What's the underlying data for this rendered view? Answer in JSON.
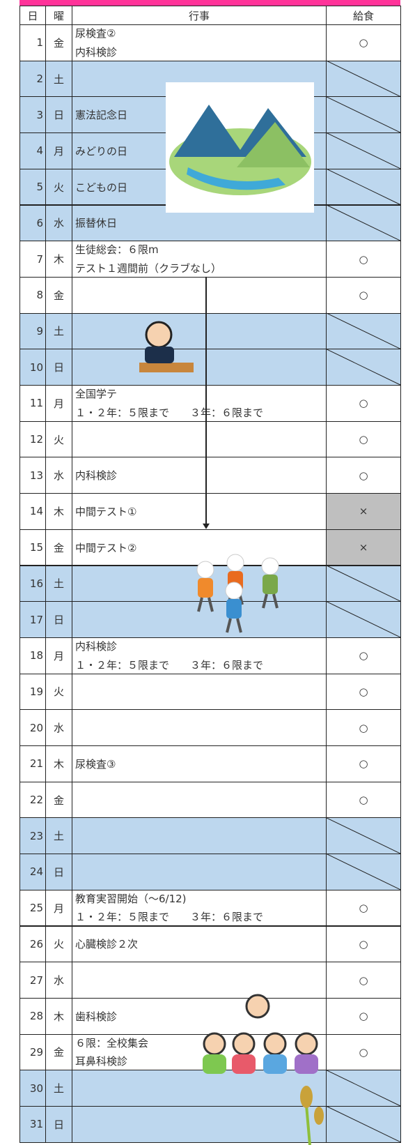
{
  "table": {
    "header": [
      "日",
      "曜",
      "行事",
      "給食"
    ],
    "rows": [
      {
        "day": 1,
        "weekday": "金",
        "events": [
          "尿検査②",
          "内科検診"
        ],
        "lunch": "○"
      },
      {
        "day": 2,
        "weekday": "土",
        "events": [],
        "lunch": null,
        "color": "#bdd7ee"
      },
      {
        "day": 3,
        "weekday": "日",
        "events": [
          "憲法記念日"
        ],
        "lunch": null,
        "color": "#bdd7ee"
      },
      {
        "day": 4,
        "weekday": "月",
        "events": [
          "みどりの日"
        ],
        "lunch": null,
        "color": "#bdd7ee"
      },
      {
        "day": 5,
        "weekday": "火",
        "events": [
          "こどもの日"
        ],
        "lunch": null,
        "color": "#bdd7ee"
      },
      {
        "day": 6,
        "weekday": "水",
        "events": [
          "振替休日"
        ],
        "lunch": null,
        "color": "#bdd7ee"
      },
      {
        "day": 7,
        "weekday": "木",
        "events": [
          "生徒総会：６限m",
          "テスト１週間前（クラブなし）"
        ],
        "lunch": "○"
      },
      {
        "day": 8,
        "weekday": "金",
        "events": [],
        "lunch": "○"
      },
      {
        "day": 9,
        "weekday": "土",
        "events": [],
        "lunch": null,
        "color": "#bdd7ee"
      },
      {
        "day": 10,
        "weekday": "日",
        "events": [],
        "lunch": null,
        "color": "#bdd7ee"
      },
      {
        "day": 11,
        "weekday": "月",
        "events": [
          "全国学テ",
          "１・２年：５限まで　　３年：６限まで"
        ],
        "lunch": "○"
      },
      {
        "day": 12,
        "weekday": "火",
        "events": [],
        "lunch": "○"
      },
      {
        "day": 13,
        "weekday": "水",
        "events": [
          "内科検診"
        ],
        "lunch": "○"
      },
      {
        "day": 14,
        "weekday": "木",
        "events": [
          "中間テスト①"
        ],
        "lunch": "×",
        "lunch_color": "#bfbfbf"
      },
      {
        "day": 15,
        "weekday": "金",
        "events": [
          "中間テスト②"
        ],
        "lunch": "×",
        "lunch_color": "#bfbfbf"
      },
      {
        "day": 16,
        "weekday": "土",
        "events": [],
        "lunch": null,
        "color": "#bdd7ee"
      },
      {
        "day": 17,
        "weekday": "日",
        "events": [],
        "lunch": null,
        "color": "#bdd7ee"
      },
      {
        "day": 18,
        "weekday": "月",
        "events": [
          "内科検診",
          "１・２年：５限まで　　３年：６限まで"
        ],
        "lunch": "○"
      },
      {
        "day": 19,
        "weekday": "火",
        "events": [],
        "lunch": "○"
      },
      {
        "day": 20,
        "weekday": "水",
        "events": [],
        "lunch": "○"
      },
      {
        "day": 21,
        "weekday": "木",
        "events": [
          "尿検査③"
        ],
        "lunch": "○"
      },
      {
        "day": 22,
        "weekday": "金",
        "events": [],
        "lunch": "○"
      },
      {
        "day": 23,
        "weekday": "土",
        "events": [],
        "lunch": null,
        "color": "#bdd7ee"
      },
      {
        "day": 24,
        "weekday": "日",
        "events": [],
        "lunch": null,
        "color": "#bdd7ee"
      },
      {
        "day": 25,
        "weekday": "月",
        "events": [
          "教育実習開始（～6/12)",
          "１・２年：５限まで　　３年：６限まで"
        ],
        "lunch": "○"
      },
      {
        "day": 26,
        "weekday": "火",
        "events": [
          "心臓検診２次"
        ],
        "lunch": "○"
      },
      {
        "day": 27,
        "weekday": "水",
        "events": [],
        "lunch": "○"
      },
      {
        "day": 28,
        "weekday": "木",
        "events": [
          "歯科検診"
        ],
        "lunch": "○"
      },
      {
        "day": 29,
        "weekday": "金",
        "events": [
          "６限：全校集会",
          "耳鼻科検診"
        ],
        "lunch": "○"
      },
      {
        "day": 30,
        "weekday": "土",
        "events": [],
        "lunch": null,
        "color": "#bdd7ee"
      },
      {
        "day": 31,
        "weekday": "日",
        "events": [],
        "lunch": null,
        "color": "#bdd7ee"
      }
    ]
  }
}
